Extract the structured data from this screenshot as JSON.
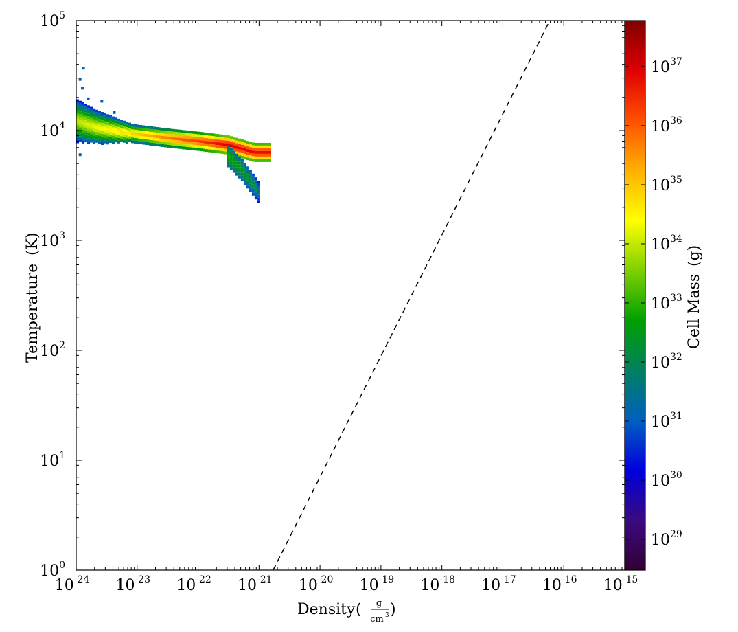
{
  "chart_data": {
    "type": "heatmap",
    "title": "",
    "xlabel": "Density",
    "xlabel_unit": {
      "numerator": "g",
      "denominator": "cm",
      "denominator_exp": "3"
    },
    "ylabel": "Temperature",
    "ylabel_unit": "(K)",
    "x_scale": "log",
    "y_scale": "log",
    "xlim": [
      1e-24,
      1e-15
    ],
    "ylim": [
      1,
      100000
    ],
    "x_ticks": [
      {
        "base": "10",
        "exp": "-24"
      },
      {
        "base": "10",
        "exp": "-23"
      },
      {
        "base": "10",
        "exp": "-22"
      },
      {
        "base": "10",
        "exp": "-21"
      },
      {
        "base": "10",
        "exp": "-20"
      },
      {
        "base": "10",
        "exp": "-19"
      },
      {
        "base": "10",
        "exp": "-18"
      },
      {
        "base": "10",
        "exp": "-17"
      },
      {
        "base": "10",
        "exp": "-16"
      },
      {
        "base": "10",
        "exp": "-15"
      }
    ],
    "y_ticks": [
      {
        "base": "10",
        "exp": "0"
      },
      {
        "base": "10",
        "exp": "1"
      },
      {
        "base": "10",
        "exp": "2"
      },
      {
        "base": "10",
        "exp": "3"
      },
      {
        "base": "10",
        "exp": "4"
      },
      {
        "base": "10",
        "exp": "5"
      }
    ],
    "colorbar": {
      "label": "Cell Mass",
      "unit": "(g)",
      "scale": "log",
      "range": [
        3e+28,
        6e+37
      ],
      "colormap": [
        "#330033",
        "#3a0a80",
        "#0000dd",
        "#0060c0",
        "#008060",
        "#00a000",
        "#7fd000",
        "#ffff00",
        "#ffb000",
        "#ff5000",
        "#e00000",
        "#800000"
      ],
      "ticks": [
        {
          "base": "10",
          "exp": "29"
        },
        {
          "base": "10",
          "exp": "30"
        },
        {
          "base": "10",
          "exp": "31"
        },
        {
          "base": "10",
          "exp": "32"
        },
        {
          "base": "10",
          "exp": "33"
        },
        {
          "base": "10",
          "exp": "34"
        },
        {
          "base": "10",
          "exp": "35"
        },
        {
          "base": "10",
          "exp": "36"
        },
        {
          "base": "10",
          "exp": "37"
        }
      ]
    },
    "reference_line": {
      "style": "dashed",
      "color": "#000000",
      "points": [
        [
          1.7e-21,
          1
        ],
        [
          5.9e-17,
          100000
        ]
      ]
    },
    "ridge": [
      {
        "x": 1e-24,
        "y": 12500,
        "mass": 1e+34
      },
      {
        "x": 2e-24,
        "y": 11000,
        "mass": 2e+34
      },
      {
        "x": 5e-24,
        "y": 10000,
        "mass": 5e+34
      },
      {
        "x": 1e-23,
        "y": 9500,
        "mass": 1e+35
      },
      {
        "x": 3e-23,
        "y": 8800,
        "mass": 5e+35
      },
      {
        "x": 1e-22,
        "y": 8200,
        "mass": 2e+36
      },
      {
        "x": 3e-22,
        "y": 7600,
        "mass": 1e+37
      },
      {
        "x": 8e-22,
        "y": 6500,
        "mass": 6e+36
      }
    ],
    "tail": [
      {
        "x": 3e-22,
        "y": 6000,
        "mass": 1e+33
      },
      {
        "x": 5e-22,
        "y": 4500,
        "mass": 5e+32
      },
      {
        "x": 8e-22,
        "y": 3200,
        "mass": 2e+32
      },
      {
        "x": 1e-21,
        "y": 2700,
        "mass": 5e+31
      }
    ],
    "scatter_outliers": [
      {
        "x": 1.1e-24,
        "y": 30000,
        "mass": 1e+31
      },
      {
        "x": 1.25e-24,
        "y": 38000,
        "mass": 1e+31
      },
      {
        "x": 1.2e-24,
        "y": 25000,
        "mass": 1e+31
      },
      {
        "x": 1.5e-24,
        "y": 20000,
        "mass": 1e+31
      },
      {
        "x": 2.5e-24,
        "y": 19000,
        "mass": 1e+31
      },
      {
        "x": 4e-24,
        "y": 15000,
        "mass": 1e+31
      },
      {
        "x": 1.1e-24,
        "y": 6200,
        "mass": 1e+31
      }
    ]
  }
}
